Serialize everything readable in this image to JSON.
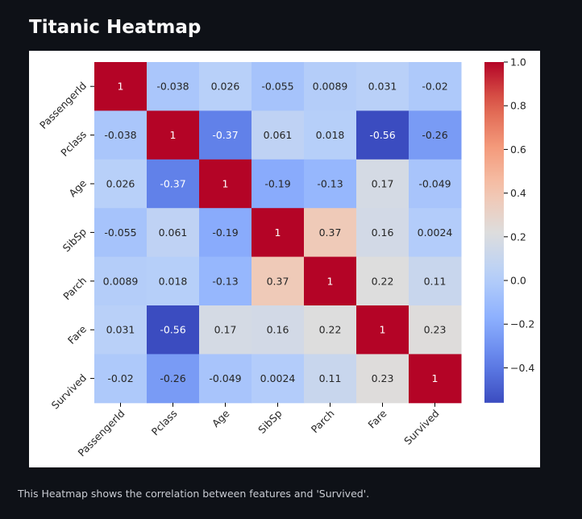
{
  "page": {
    "title": "Titanic Heatmap",
    "caption": "This Heatmap shows the correlation between features and 'Survived'."
  },
  "chart_data": {
    "type": "heatmap",
    "title": "",
    "xlabel": "",
    "ylabel": "",
    "x_categories": [
      "PassengerId",
      "Pclass",
      "Age",
      "SibSp",
      "Parch",
      "Fare",
      "Survived"
    ],
    "y_categories": [
      "PassengerId",
      "Pclass",
      "Age",
      "SibSp",
      "Parch",
      "Fare",
      "Survived"
    ],
    "values": [
      [
        1,
        -0.038,
        0.026,
        -0.055,
        0.0089,
        0.031,
        -0.02
      ],
      [
        -0.038,
        1,
        -0.37,
        0.061,
        0.018,
        -0.56,
        -0.26
      ],
      [
        0.026,
        -0.37,
        1,
        -0.19,
        -0.13,
        0.17,
        -0.049
      ],
      [
        -0.055,
        0.061,
        -0.19,
        1,
        0.37,
        0.16,
        0.0024
      ],
      [
        0.0089,
        0.018,
        -0.13,
        0.37,
        1,
        0.22,
        0.11
      ],
      [
        0.031,
        -0.56,
        0.17,
        0.16,
        0.22,
        1,
        0.23
      ],
      [
        -0.02,
        -0.26,
        -0.049,
        0.0024,
        0.11,
        0.23,
        1
      ]
    ],
    "value_labels": [
      [
        "1",
        "-0.038",
        "0.026",
        "-0.055",
        "0.0089",
        "0.031",
        "-0.02"
      ],
      [
        "-0.038",
        "1",
        "-0.37",
        "0.061",
        "0.018",
        "-0.56",
        "-0.26"
      ],
      [
        "0.026",
        "-0.37",
        "1",
        "-0.19",
        "-0.13",
        "0.17",
        "-0.049"
      ],
      [
        "-0.055",
        "0.061",
        "-0.19",
        "1",
        "0.37",
        "0.16",
        "0.0024"
      ],
      [
        "0.0089",
        "0.018",
        "-0.13",
        "0.37",
        "1",
        "0.22",
        "0.11"
      ],
      [
        "0.031",
        "-0.56",
        "0.17",
        "0.16",
        "0.22",
        "1",
        "0.23"
      ],
      [
        "-0.02",
        "-0.26",
        "-0.049",
        "0.0024",
        "0.11",
        "0.23",
        "1"
      ]
    ],
    "colormap": "coolwarm",
    "colorbar": {
      "range": [
        -0.56,
        1.0
      ],
      "ticks": [
        1.0,
        0.8,
        0.6,
        0.4,
        0.2,
        0.0,
        -0.2,
        -0.4
      ],
      "tick_labels": [
        "1.0",
        "0.8",
        "0.6",
        "0.4",
        "0.2",
        "0.0",
        "−0.2",
        "−0.4"
      ]
    },
    "colors": {
      "text_dark": "#262626",
      "text_light": "#ffffff",
      "axis": "#000000"
    }
  }
}
